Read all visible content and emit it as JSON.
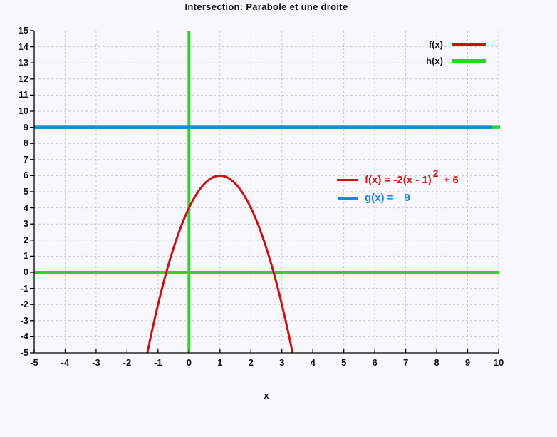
{
  "title": "Intersection: Parabole et une droite",
  "xlabel": "x",
  "colors": {
    "background": "#f8f8fc",
    "grid": "#c9c9d2",
    "border": "#000000",
    "parabola_red": "#cc1111",
    "line_blue": "#1e87e0",
    "line_green": "#2ad62a"
  },
  "legend": {
    "position": "top-right",
    "items": [
      {
        "label": "f(x)",
        "color": "#cc1111",
        "thickness": 4
      },
      {
        "label": "h(x)",
        "color": "#2ad62a",
        "thickness": 5
      }
    ]
  },
  "annotations": {
    "f": {
      "prefix": "f(x) = -2(x - 1)",
      "sup": "2",
      "suffix": "+ 6",
      "text_color": "#e01212",
      "swatch_color": "#cc1111"
    },
    "g": {
      "label": "g(x) =",
      "value": "9",
      "text_color": "#1285ea",
      "swatch_color": "#1e87e0"
    }
  },
  "chart_data": {
    "type": "line",
    "title": "Intersection: Parabole et une droite",
    "xlabel": "x",
    "ylabel": "",
    "xlim": [
      -5,
      10
    ],
    "ylim": [
      -5,
      15
    ],
    "xticks": [
      -5,
      -4,
      -3,
      -2,
      -1,
      0,
      1,
      2,
      3,
      4,
      5,
      6,
      7,
      8,
      9,
      10
    ],
    "yticks": [
      -5,
      -4,
      -3,
      -2,
      -1,
      0,
      1,
      2,
      3,
      4,
      5,
      6,
      7,
      8,
      9,
      10,
      11,
      12,
      13,
      14,
      15
    ],
    "grid": true,
    "legend_position": "top-right",
    "zero_axes_color": "#2ad62a",
    "series": [
      {
        "name": "f(x)",
        "type": "parabola",
        "expression": "f(x) = -2(x - 1)^2 + 6",
        "a": -2,
        "h": 1,
        "k": 6,
        "color": "#cc1111",
        "width": 3,
        "points": [
          [
            -1.345,
            -5
          ],
          [
            0,
            4
          ],
          [
            1,
            6
          ],
          [
            2,
            4
          ],
          [
            3.345,
            -5
          ]
        ]
      },
      {
        "name": "h(x)",
        "type": "hline",
        "y": 9,
        "x_range": [
          -5,
          10.05
        ],
        "color": "#2ad62a",
        "width": 4.5
      },
      {
        "name": "g(x)",
        "type": "hline",
        "y": 9,
        "x_range": [
          -5,
          9.8
        ],
        "color": "#1e87e0",
        "width": 4.5
      }
    ]
  }
}
